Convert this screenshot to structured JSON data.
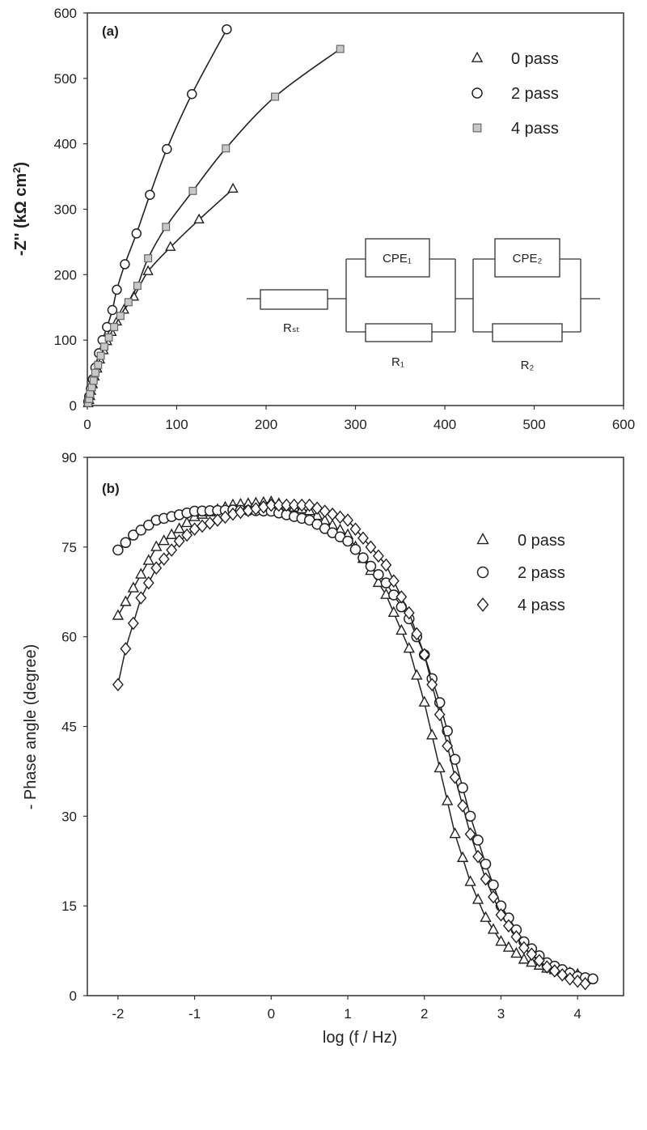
{
  "chart_data": [
    {
      "type": "scatter",
      "panel_label": "(a)",
      "title": "",
      "xlabel": "",
      "ylabel": "-Z'' (kΩ cm²)",
      "xlim": [
        0,
        600
      ],
      "ylim": [
        0,
        600
      ],
      "xticks": [
        0,
        100,
        200,
        300,
        400,
        500,
        600
      ],
      "yticks": [
        0,
        100,
        200,
        300,
        400,
        500,
        600
      ],
      "grid": false,
      "legend_position": "top-right",
      "series": [
        {
          "name": "0 pass",
          "marker": "triangle",
          "points": [
            [
              1,
              3
            ],
            [
              2,
              8
            ],
            [
              3,
              14
            ],
            [
              4,
              22
            ],
            [
              6,
              32
            ],
            [
              8,
              44
            ],
            [
              11,
              56
            ],
            [
              14,
              70
            ],
            [
              18,
              84
            ],
            [
              22,
              98
            ],
            [
              27,
              112
            ],
            [
              33,
              128
            ],
            [
              41,
              146
            ],
            [
              52,
              166
            ],
            [
              68,
              205
            ],
            [
              93,
              242
            ],
            [
              125,
              284
            ],
            [
              163,
              331
            ]
          ]
        },
        {
          "name": "2 pass",
          "marker": "circle",
          "points": [
            [
              1,
              6
            ],
            [
              2,
              14
            ],
            [
              4,
              26
            ],
            [
              6,
              40
            ],
            [
              9,
              58
            ],
            [
              13,
              80
            ],
            [
              17,
              100
            ],
            [
              22,
              120
            ],
            [
              28,
              146
            ],
            [
              33,
              177
            ],
            [
              42,
              216
            ],
            [
              55,
              263
            ],
            [
              70,
              322
            ],
            [
              89,
              392
            ],
            [
              117,
              476
            ],
            [
              156,
              575
            ]
          ]
        },
        {
          "name": "4 pass",
          "marker": "square",
          "points": [
            [
              1,
              4
            ],
            [
              2,
              10
            ],
            [
              3,
              18
            ],
            [
              5,
              28
            ],
            [
              7,
              38
            ],
            [
              9,
              50
            ],
            [
              12,
              62
            ],
            [
              15,
              76
            ],
            [
              19,
              90
            ],
            [
              24,
              104
            ],
            [
              30,
              120
            ],
            [
              37,
              137
            ],
            [
              46,
              158
            ],
            [
              56,
              183
            ],
            [
              68,
              225
            ],
            [
              88,
              273
            ],
            [
              118,
              328
            ],
            [
              155,
              393
            ],
            [
              210,
              472
            ],
            [
              283,
              545
            ]
          ]
        }
      ],
      "inset_circuit": {
        "labels": [
          "Rₛₜ",
          "CPE₁",
          "R₁",
          "CPE₂",
          "R₂"
        ]
      }
    },
    {
      "type": "line",
      "panel_label": "(b)",
      "title": "",
      "xlabel": "log (f / Hz)",
      "ylabel": "- Phase angle (degree)",
      "xlim": [
        -2.4,
        4.6
      ],
      "ylim": [
        0,
        90
      ],
      "xticks": [
        -2,
        -1,
        0,
        1,
        2,
        3,
        4
      ],
      "yticks": [
        0,
        15,
        30,
        45,
        60,
        75,
        90
      ],
      "grid": false,
      "legend_position": "top-right",
      "series": [
        {
          "name": "0 pass",
          "marker": "triangle",
          "x_start": -2.0,
          "x_end": 4.0,
          "num_points": 61,
          "curve_x": [
            -2.0,
            -1.5,
            -1.0,
            -0.5,
            0.0,
            0.5,
            1.0,
            1.5,
            1.8,
            2.0,
            2.2,
            2.4,
            2.6,
            2.8,
            3.0,
            3.3,
            3.6,
            4.0
          ],
          "curve_y": [
            63.5,
            75.0,
            80.0,
            82.0,
            82.5,
            81.0,
            77.0,
            67.0,
            58.0,
            49.0,
            38.0,
            27.0,
            19.0,
            13.0,
            9.0,
            6.0,
            4.5,
            3.5
          ]
        },
        {
          "name": "2 pass",
          "marker": "circle",
          "x_start": -2.0,
          "x_end": 4.2,
          "num_points": 63,
          "curve_x": [
            -2.0,
            -1.8,
            -1.5,
            -1.0,
            -0.5,
            0.0,
            0.5,
            1.0,
            1.5,
            1.8,
            2.0,
            2.2,
            2.4,
            2.6,
            2.8,
            3.0,
            3.3,
            3.6,
            4.0,
            4.2
          ],
          "curve_y": [
            74.5,
            77.0,
            79.5,
            81.0,
            81.2,
            81.0,
            79.5,
            76.0,
            69.0,
            63.0,
            57.0,
            49.0,
            39.5,
            30.0,
            22.0,
            15.0,
            9.0,
            5.5,
            3.2,
            2.8
          ]
        },
        {
          "name": "4 pass",
          "marker": "diamond",
          "x_start": -2.0,
          "x_end": 4.1,
          "num_points": 62,
          "curve_x": [
            -2.0,
            -1.9,
            -1.7,
            -1.5,
            -1.2,
            -1.0,
            -0.5,
            0.0,
            0.5,
            1.0,
            1.5,
            1.8,
            2.0,
            2.2,
            2.4,
            2.6,
            2.8,
            3.0,
            3.3,
            3.6,
            3.9,
            4.1
          ],
          "curve_y": [
            52.0,
            58.0,
            66.5,
            71.5,
            76.0,
            78.0,
            80.5,
            82.0,
            82.0,
            79.5,
            72.0,
            64.0,
            57.0,
            47.0,
            36.5,
            27.0,
            19.5,
            13.5,
            8.0,
            4.8,
            2.8,
            2.0
          ]
        }
      ]
    }
  ]
}
